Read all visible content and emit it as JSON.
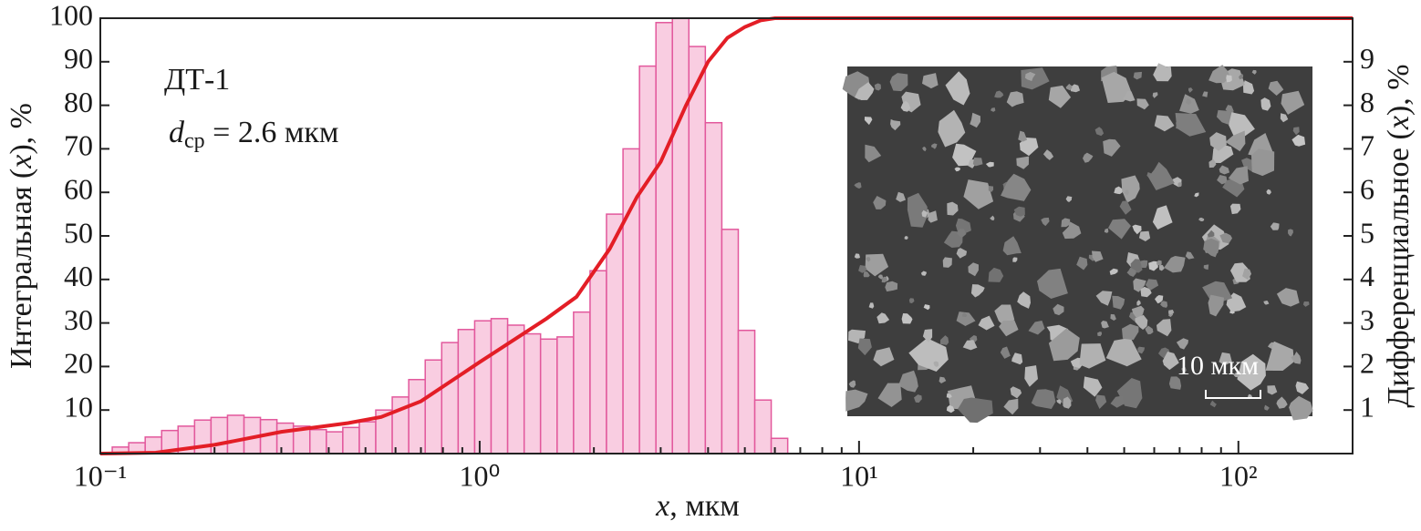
{
  "chart_data": {
    "type": "histogram",
    "xscale": "log",
    "xlim": [
      0.1,
      200
    ],
    "xticks": [
      {
        "value": 0.1,
        "label": "10⁻¹"
      },
      {
        "value": 1,
        "label": "10⁰"
      },
      {
        "value": 10,
        "label": "10¹"
      },
      {
        "value": 100,
        "label": "10²"
      }
    ],
    "xminorticks": [
      0.2,
      0.3,
      0.4,
      0.5,
      0.6,
      0.7,
      0.8,
      0.9,
      2,
      3,
      4,
      5,
      6,
      7,
      8,
      9,
      20,
      30,
      40,
      50,
      60,
      70,
      80,
      90
    ],
    "ylim": [
      0,
      100
    ],
    "yticks": [
      10,
      20,
      30,
      40,
      50,
      60,
      70,
      80,
      90,
      100
    ],
    "y2lim": [
      0,
      10
    ],
    "y2ticks": [
      1,
      2,
      3,
      4,
      5,
      6,
      7,
      8,
      9
    ],
    "ylabel": [
      "Интегральная (",
      "x",
      "), %"
    ],
    "y2label": [
      "Дифференциальное (",
      "x",
      "), %"
    ],
    "xlabel": [
      "x",
      ", мкм"
    ],
    "sample_label": "ДТ-1",
    "mean_size": {
      "symbol": "d",
      "subscript": "ср",
      "text": " = 2.6 мкм"
    },
    "inset_scale": "10 мкм",
    "histogram": {
      "axis": "y2",
      "color": "#f9cde1",
      "edge_color": "#e2589c",
      "bins": [
        0.1075,
        0.1188,
        0.1313,
        0.1451,
        0.1603,
        0.1772,
        0.1958,
        0.2164,
        0.2392,
        0.2643,
        0.2921,
        0.3228,
        0.3568,
        0.3943,
        0.4357,
        0.4816,
        0.5322,
        0.5882,
        0.6501,
        0.7185,
        0.7941,
        0.8777,
        0.9701,
        1.072,
        1.185,
        1.31,
        1.447,
        1.6,
        1.768,
        1.954,
        2.159,
        2.387,
        2.638,
        2.915,
        3.221,
        3.56,
        3.934,
        4.348,
        4.805,
        5.311,
        5.868,
        6.486
      ],
      "counts": [
        0.15,
        0.25,
        0.38,
        0.53,
        0.63,
        0.77,
        0.83,
        0.88,
        0.83,
        0.78,
        0.7,
        0.63,
        0.55,
        0.5,
        0.6,
        0.73,
        1.0,
        1.3,
        1.7,
        2.15,
        2.55,
        2.85,
        3.05,
        3.1,
        2.95,
        2.75,
        2.63,
        2.68,
        3.25,
        4.2,
        5.5,
        7.0,
        8.9,
        9.9,
        10.0,
        9.35,
        7.6,
        5.15,
        2.83,
        1.23,
        0.35
      ]
    },
    "line": {
      "color": "#e31e26",
      "x": [
        0.1,
        0.14,
        0.2,
        0.3,
        0.45,
        0.55,
        0.7,
        1.0,
        1.5,
        1.8,
        2.2,
        2.6,
        3.0,
        3.5,
        4.0,
        4.5,
        5.0,
        5.5,
        6.0,
        200
      ],
      "values": [
        0,
        0.2,
        2,
        5,
        7,
        8.4,
        12,
        21,
        31,
        36,
        47,
        59,
        67,
        80,
        90,
        95.5,
        98,
        99.5,
        100,
        100
      ]
    }
  }
}
